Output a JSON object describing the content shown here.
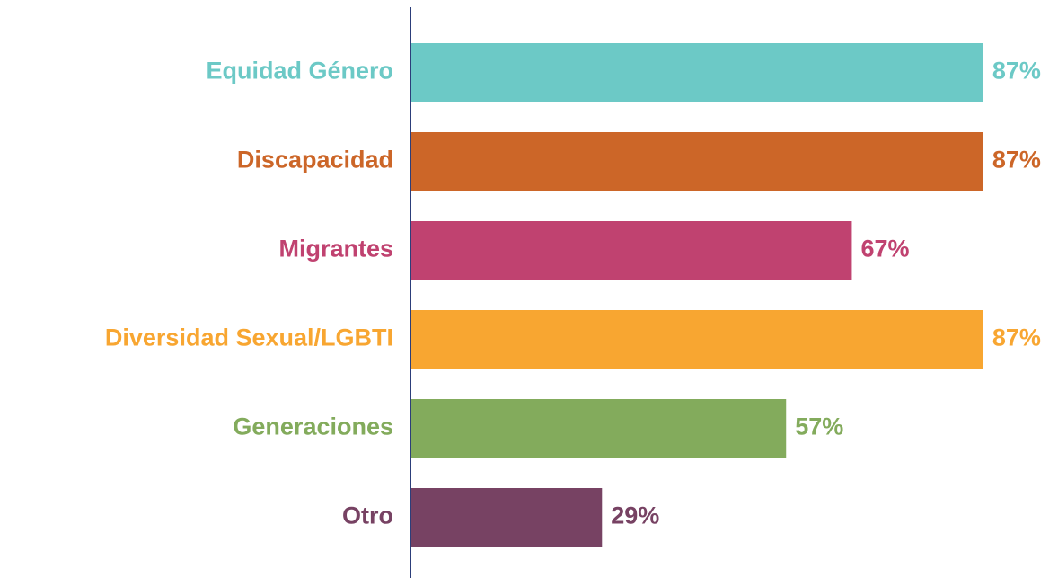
{
  "chart_data": {
    "type": "bar",
    "orientation": "horizontal",
    "categories": [
      "Equidad Género",
      "Discapacidad",
      "Migrantes",
      "Diversidad Sexual/LGBTI",
      "Generaciones",
      "Otro"
    ],
    "values": [
      87,
      87,
      67,
      87,
      57,
      29
    ],
    "value_labels": [
      "87%",
      "87%",
      "67%",
      "87%",
      "57%",
      "29%"
    ],
    "colors": [
      "#6cc9c6",
      "#cc6628",
      "#c04270",
      "#f8a631",
      "#83ab5c",
      "#774263"
    ]
  }
}
